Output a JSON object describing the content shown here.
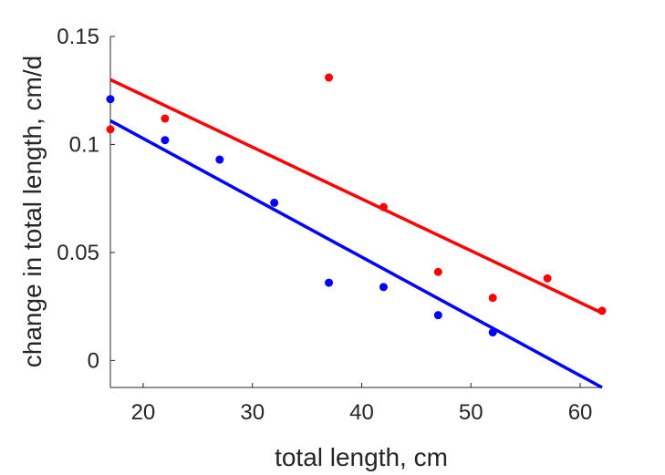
{
  "chart_data": {
    "type": "scatter",
    "title": "",
    "xlabel": "total length, cm",
    "ylabel": "change in total length, cm/d",
    "xlim": [
      17,
      62
    ],
    "ylim": [
      -0.0125,
      0.15
    ],
    "xticks": [
      20,
      30,
      40,
      50,
      60
    ],
    "xtick_labels": [
      "20",
      "30",
      "40",
      "50",
      "60"
    ],
    "yticks": [
      0,
      0.05,
      0.1,
      0.15
    ],
    "ytick_labels": [
      "0",
      "0.05",
      "0.1",
      "0.15"
    ],
    "grid": false,
    "legend": "none",
    "series": [
      {
        "color": "#ff0000",
        "points": {
          "x": [
            17,
            22,
            37,
            42,
            47,
            52,
            57,
            62
          ],
          "y": [
            0.107,
            0.112,
            0.131,
            0.071,
            0.041,
            0.029,
            0.038,
            0.023
          ]
        },
        "fit_line": {
          "x": [
            17,
            62
          ],
          "y": [
            0.13,
            0.022
          ]
        }
      },
      {
        "color": "#0000ff",
        "points": {
          "x": [
            17,
            22,
            27,
            32,
            37,
            42,
            47,
            52
          ],
          "y": [
            0.121,
            0.102,
            0.093,
            0.073,
            0.036,
            0.034,
            0.021,
            0.013
          ]
        },
        "fit_line": {
          "x": [
            17,
            62
          ],
          "y": [
            0.111,
            -0.0125
          ]
        }
      }
    ]
  }
}
